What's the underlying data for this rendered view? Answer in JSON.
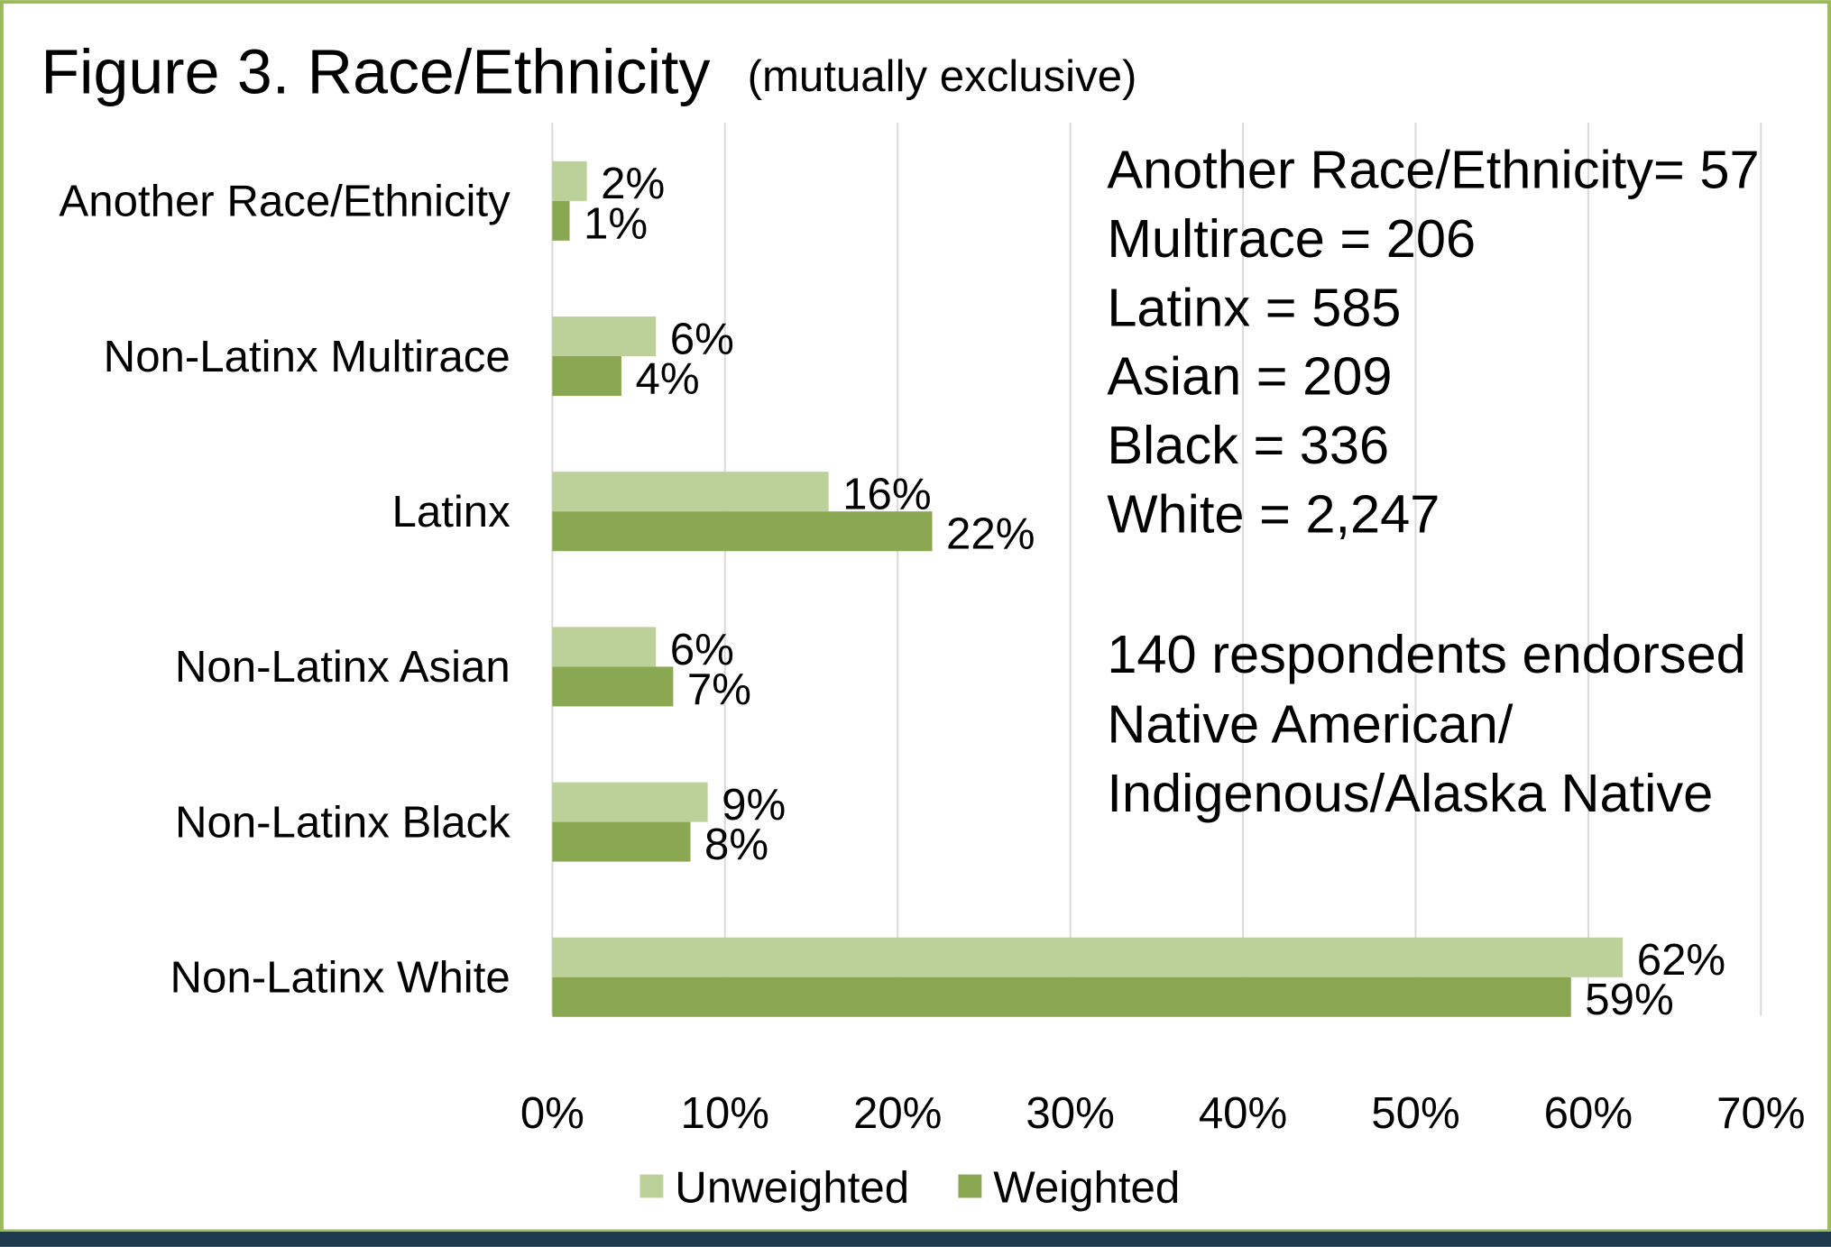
{
  "chart_data": {
    "type": "hbar",
    "title": "Figure 3. Race/Ethnicity",
    "subtitle": "(mutually exclusive)",
    "categories": [
      "Another Race/Ethnicity",
      "Non-Latinx Multirace",
      "Latinx",
      "Non-Latinx Asian",
      "Non-Latinx Black",
      "Non-Latinx White"
    ],
    "series": [
      {
        "name": "Unweighted",
        "color": "#bcd19a",
        "values": [
          2,
          6,
          16,
          6,
          9,
          62
        ],
        "value_labels": [
          "2%",
          "6%",
          "16%",
          "6%",
          "9%",
          "62%"
        ]
      },
      {
        "name": "Weighted",
        "color": "#8aa852",
        "values": [
          1,
          4,
          22,
          7,
          8,
          59
        ],
        "value_labels": [
          "1%",
          "4%",
          "22%",
          "7%",
          "8%",
          "59%"
        ]
      }
    ],
    "xlim": [
      0,
      70
    ],
    "xticks": [
      {
        "value": 0,
        "label": "0%"
      },
      {
        "value": 10,
        "label": "10%"
      },
      {
        "value": 20,
        "label": "20%"
      },
      {
        "value": 30,
        "label": "30%"
      },
      {
        "value": 40,
        "label": "40%"
      },
      {
        "value": 50,
        "label": "50%"
      },
      {
        "value": 60,
        "label": "60%"
      },
      {
        "value": 70,
        "label": "70%"
      }
    ],
    "grid": true,
    "legend": "bottom",
    "annotations": [
      "Another Race/Ethnicity= 57",
      "Multirace = 206",
      "Latinx = 585",
      "Asian = 209",
      "Black = 336",
      "White = 2,247",
      "140 respondents endorsed",
      "Native American/",
      "Indigenous/Alaska Native"
    ]
  }
}
